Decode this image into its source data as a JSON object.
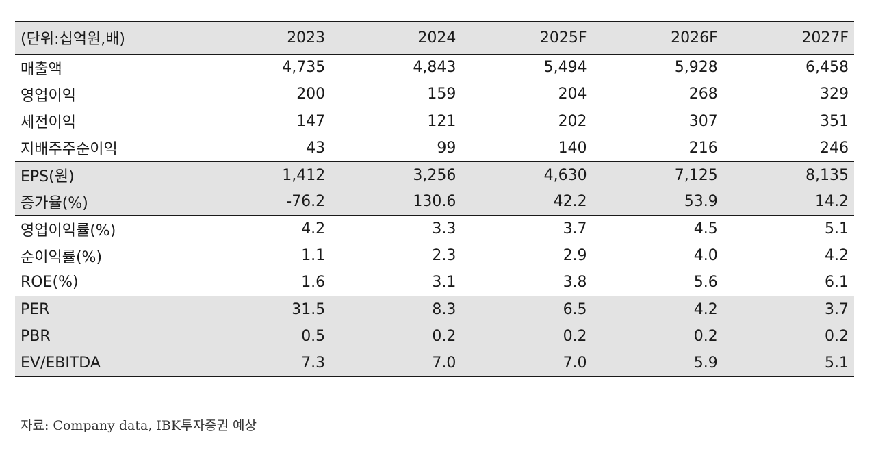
{
  "table": {
    "header": [
      "(단위:십억원,배)",
      "2023",
      "2024",
      "2025F",
      "2026F",
      "2027F"
    ],
    "rows": [
      {
        "label": "매출액",
        "values": [
          "4,735",
          "4,843",
          "5,494",
          "5,928",
          "6,458"
        ]
      },
      {
        "label": "영업이익",
        "values": [
          "200",
          "159",
          "204",
          "268",
          "329"
        ]
      },
      {
        "label": "세전이익",
        "values": [
          "147",
          "121",
          "202",
          "307",
          "351"
        ]
      },
      {
        "label": "지배주주순이익",
        "values": [
          "43",
          "99",
          "140",
          "216",
          "246"
        ]
      },
      {
        "label": "EPS(원)",
        "values": [
          "1,412",
          "3,256",
          "4,630",
          "7,125",
          "8,135"
        ]
      },
      {
        "label": "증가율(%)",
        "values": [
          "-76.2",
          "130.6",
          "42.2",
          "53.9",
          "14.2"
        ]
      },
      {
        "label": "영업이익률(%)",
        "values": [
          "4.2",
          "3.3",
          "3.7",
          "4.5",
          "5.1"
        ]
      },
      {
        "label": "순이익률(%)",
        "values": [
          "1.1",
          "2.3",
          "2.9",
          "4.0",
          "4.2"
        ]
      },
      {
        "label": "ROE(%)",
        "values": [
          "1.6",
          "3.1",
          "3.8",
          "5.6",
          "6.1"
        ]
      },
      {
        "label": "PER",
        "values": [
          "31.5",
          "8.3",
          "6.5",
          "4.2",
          "3.7"
        ]
      },
      {
        "label": "PBR",
        "values": [
          "0.5",
          "0.2",
          "0.2",
          "0.2",
          "0.2"
        ]
      },
      {
        "label": "EV/EBITDA",
        "values": [
          "7.3",
          "7.0",
          "7.0",
          "5.9",
          "5.1"
        ]
      }
    ]
  },
  "source": "자료: Company data, IBK투자증권 예상"
}
